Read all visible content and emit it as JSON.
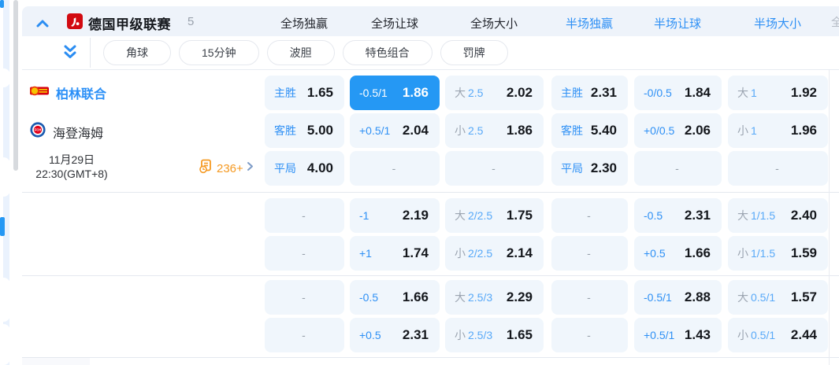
{
  "colors": {
    "accent_blue": "#2598f4",
    "label_blue": "#2e90f5",
    "cell_bg": "#f0f6fc",
    "band_bg": "#eef3fa",
    "orange": "#f59a23",
    "odds_text": "#14171c"
  },
  "league_bar": {
    "name": "德国甲级联赛",
    "count": "5",
    "columns": [
      {
        "label": "全场独赢",
        "active": false
      },
      {
        "label": "全场让球",
        "active": false
      },
      {
        "label": "全场大小",
        "active": false
      },
      {
        "label": "半场独赢",
        "active": true
      },
      {
        "label": "半场让球",
        "active": true
      },
      {
        "label": "半场大小",
        "active": true
      }
    ]
  },
  "filters": {
    "pills": [
      "角球",
      "15分钟",
      "波胆",
      "特色组合",
      "罚牌"
    ]
  },
  "match": {
    "home": "柏林联合",
    "away": "海登海姆",
    "date_line1": "11月29日",
    "date_line2": "22:30(GMT+8)",
    "markets_count": "236+"
  },
  "odds": {
    "groups": [
      {
        "rows": [
          [
            {
              "label": "主胜",
              "odds": "1.65"
            },
            {
              "label": "-0.5/1",
              "odds": "1.86",
              "selected": true
            },
            {
              "prefix": "大",
              "hcp": "2.5",
              "odds": "2.02"
            },
            {
              "label": "主胜",
              "odds": "2.31"
            },
            {
              "label": "-0/0.5",
              "odds": "1.84"
            },
            {
              "prefix": "大",
              "hcp": "1",
              "odds": "1.92"
            }
          ],
          [
            {
              "label": "客胜",
              "odds": "5.00"
            },
            {
              "label": "+0.5/1",
              "odds": "2.04"
            },
            {
              "prefix": "小",
              "hcp": "2.5",
              "odds": "1.86"
            },
            {
              "label": "客胜",
              "odds": "5.40"
            },
            {
              "label": "+0/0.5",
              "odds": "2.06"
            },
            {
              "prefix": "小",
              "hcp": "1",
              "odds": "1.96"
            }
          ],
          [
            {
              "label": "平局",
              "odds": "4.00"
            },
            {
              "dash": true
            },
            {
              "dash": true
            },
            {
              "label": "平局",
              "odds": "2.30"
            },
            {
              "dash": true
            },
            {
              "dash": true
            }
          ]
        ]
      },
      {
        "rows": [
          [
            {
              "dash": true
            },
            {
              "label": "-1",
              "odds": "2.19"
            },
            {
              "prefix": "大",
              "hcp": "2/2.5",
              "odds": "1.75"
            },
            {
              "dash": true
            },
            {
              "label": "-0.5",
              "odds": "2.31"
            },
            {
              "prefix": "大",
              "hcp": "1/1.5",
              "odds": "2.40"
            }
          ],
          [
            {
              "dash": true
            },
            {
              "label": "+1",
              "odds": "1.74"
            },
            {
              "prefix": "小",
              "hcp": "2/2.5",
              "odds": "2.14"
            },
            {
              "dash": true
            },
            {
              "label": "+0.5",
              "odds": "1.66"
            },
            {
              "prefix": "小",
              "hcp": "1/1.5",
              "odds": "1.59"
            }
          ]
        ]
      },
      {
        "rows": [
          [
            {
              "dash": true
            },
            {
              "label": "-0.5",
              "odds": "1.66"
            },
            {
              "prefix": "大",
              "hcp": "2.5/3",
              "odds": "2.29"
            },
            {
              "dash": true
            },
            {
              "label": "-0.5/1",
              "odds": "2.88"
            },
            {
              "prefix": "大",
              "hcp": "0.5/1",
              "odds": "1.57"
            }
          ],
          [
            {
              "dash": true
            },
            {
              "label": "+0.5",
              "odds": "2.31"
            },
            {
              "prefix": "小",
              "hcp": "2.5/3",
              "odds": "1.65"
            },
            {
              "dash": true
            },
            {
              "label": "+0.5/1",
              "odds": "1.43"
            },
            {
              "prefix": "小",
              "hcp": "0.5/1",
              "odds": "2.44"
            }
          ]
        ]
      }
    ]
  }
}
